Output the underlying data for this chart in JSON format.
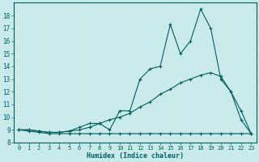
{
  "xlabel": "Humidex (Indice chaleur)",
  "bg_color": "#c8eaea",
  "line_color": "#006060",
  "grid_color": "#d4ecec",
  "xlim": [
    -0.5,
    23.5
  ],
  "ylim": [
    8,
    19
  ],
  "xticks": [
    0,
    1,
    2,
    3,
    4,
    5,
    6,
    7,
    8,
    9,
    10,
    11,
    12,
    13,
    14,
    15,
    16,
    17,
    18,
    19,
    20,
    21,
    22,
    23
  ],
  "yticks": [
    8,
    9,
    10,
    11,
    12,
    13,
    14,
    15,
    16,
    17,
    18
  ],
  "series1_x": [
    0,
    1,
    2,
    3,
    4,
    5,
    6,
    7,
    8,
    9,
    10,
    11,
    12,
    13,
    14,
    15,
    16,
    17,
    18,
    19,
    20,
    21,
    22,
    23
  ],
  "series1_y": [
    9.0,
    8.9,
    8.8,
    8.7,
    8.7,
    8.7,
    8.7,
    8.7,
    8.7,
    8.7,
    8.7,
    8.7,
    8.7,
    8.7,
    8.7,
    8.7,
    8.7,
    8.7,
    8.7,
    8.7,
    8.7,
    8.7,
    8.7,
    8.7
  ],
  "series2_x": [
    0,
    1,
    2,
    3,
    4,
    5,
    6,
    7,
    8,
    9,
    10,
    11,
    12,
    13,
    14,
    15,
    16,
    17,
    18,
    19,
    20,
    21,
    22,
    23
  ],
  "series2_y": [
    9.0,
    9.0,
    8.9,
    8.8,
    8.8,
    8.9,
    9.0,
    9.2,
    9.5,
    9.8,
    10.0,
    10.3,
    10.8,
    11.2,
    11.8,
    12.2,
    12.7,
    13.0,
    13.3,
    13.5,
    13.2,
    12.0,
    10.5,
    8.7
  ],
  "series3_x": [
    0,
    1,
    2,
    3,
    4,
    5,
    6,
    7,
    8,
    9,
    10,
    11,
    12,
    13,
    14,
    15,
    16,
    17,
    18,
    19,
    20,
    21,
    22,
    23
  ],
  "series3_y": [
    9.0,
    9.0,
    8.9,
    8.8,
    8.8,
    8.9,
    9.2,
    9.5,
    9.5,
    9.0,
    10.5,
    10.5,
    13.0,
    13.8,
    14.0,
    17.3,
    15.0,
    16.0,
    18.5,
    17.0,
    13.0,
    12.0,
    9.8,
    8.7
  ]
}
